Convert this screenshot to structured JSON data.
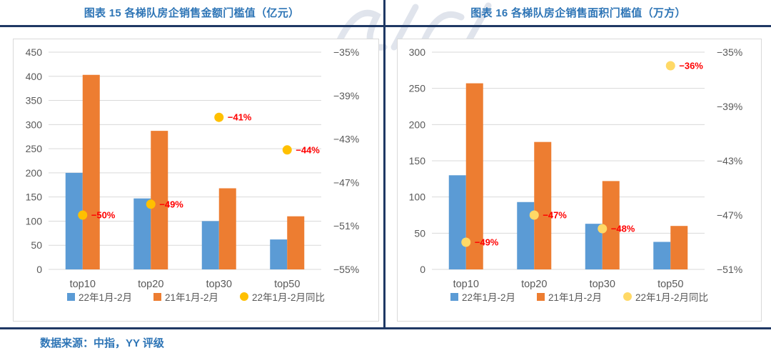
{
  "footer": {
    "source_label": "数据来源：中指，YY 评级"
  },
  "colors": {
    "bar_blue": "#5B9BD5",
    "bar_orange": "#ED7D31",
    "dot_gold": "#FFC000",
    "dot_light_gold": "#FFD966",
    "label_red": "#FF0000",
    "axis_text": "#595959",
    "gridline": "#D9D9D9",
    "rule_navy": "#1F3864",
    "title_blue": "#2E75B6"
  },
  "chart_data": [
    {
      "type": "bar",
      "title": "图表 15 各梯队房企销售金额门槛值（亿元）",
      "categories": [
        "top10",
        "top20",
        "top30",
        "top50"
      ],
      "series": [
        {
          "name": "22年1月-2月",
          "type": "bar",
          "axis": "left",
          "color": "#5B9BD5",
          "values": [
            200,
            147,
            100,
            62
          ]
        },
        {
          "name": "21年1月-2月",
          "type": "bar",
          "axis": "left",
          "color": "#ED7D31",
          "values": [
            403,
            287,
            168,
            110
          ]
        },
        {
          "name": "22年1月-2月同比",
          "type": "point",
          "axis": "right",
          "color": "#FFC000",
          "values": [
            -50,
            -49,
            -41,
            -44
          ],
          "labels": [
            "−50%",
            "−49%",
            "−41%",
            "−44%"
          ]
        }
      ],
      "left_axis": {
        "min": 0,
        "max": 450,
        "step": 50,
        "ticks": [
          "0",
          "50",
          "100",
          "150",
          "200",
          "250",
          "300",
          "350",
          "400",
          "450"
        ]
      },
      "right_axis": {
        "max": -35,
        "min": -55,
        "ticks": [
          "−35%",
          "−39%",
          "−43%",
          "−47%",
          "−51%",
          "−55%"
        ]
      },
      "grid": true,
      "legend_position": "bottom"
    },
    {
      "type": "bar",
      "title": "图表 16 各梯队房企销售面积门槛值（万方）",
      "categories": [
        "top10",
        "top20",
        "top30",
        "top50"
      ],
      "series": [
        {
          "name": "22年1月-2月",
          "type": "bar",
          "axis": "left",
          "color": "#5B9BD5",
          "values": [
            130,
            93,
            63,
            38
          ]
        },
        {
          "name": "21年1月-2月",
          "type": "bar",
          "axis": "left",
          "color": "#ED7D31",
          "values": [
            257,
            176,
            122,
            60
          ]
        },
        {
          "name": "22年1月-2月同比",
          "type": "point",
          "axis": "right",
          "color": "#FFD966",
          "values": [
            -49,
            -47,
            -48,
            -36
          ],
          "labels": [
            "−49%",
            "−47%",
            "−48%",
            "−36%"
          ]
        }
      ],
      "left_axis": {
        "min": 0,
        "max": 300,
        "step": 50,
        "ticks": [
          "0",
          "50",
          "100",
          "150",
          "200",
          "250",
          "300"
        ]
      },
      "right_axis": {
        "max": -35,
        "min": -51,
        "ticks": [
          "−35%",
          "−39%",
          "−43%",
          "−47%",
          "−51%"
        ]
      },
      "grid": true,
      "legend_position": "bottom"
    }
  ]
}
